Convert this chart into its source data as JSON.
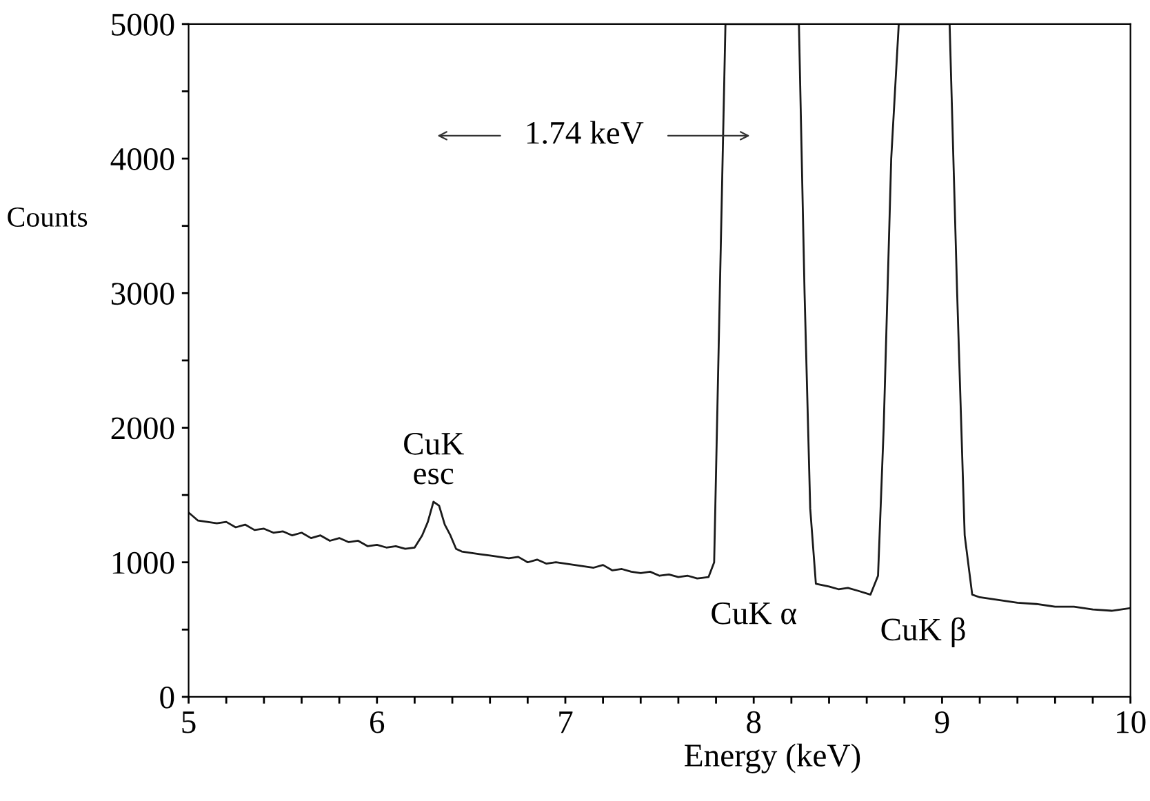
{
  "chart_data": {
    "type": "line",
    "xlabel": "Energy (keV)",
    "ylabel": "Counts",
    "x": [
      5.0,
      5.05,
      5.1,
      5.15,
      5.2,
      5.25,
      5.3,
      5.35,
      5.4,
      5.45,
      5.5,
      5.55,
      5.6,
      5.65,
      5.7,
      5.75,
      5.8,
      5.85,
      5.9,
      5.95,
      6.0,
      6.05,
      6.1,
      6.15,
      6.2,
      6.24,
      6.27,
      6.3,
      6.33,
      6.36,
      6.39,
      6.42,
      6.45,
      6.5,
      6.55,
      6.6,
      6.65,
      6.7,
      6.75,
      6.8,
      6.85,
      6.9,
      6.95,
      7.0,
      7.05,
      7.1,
      7.15,
      7.2,
      7.25,
      7.3,
      7.35,
      7.4,
      7.45,
      7.5,
      7.55,
      7.6,
      7.65,
      7.7,
      7.76,
      7.79,
      7.82,
      7.85,
      8.0,
      8.24,
      8.27,
      8.3,
      8.33,
      8.4,
      8.45,
      8.5,
      8.55,
      8.62,
      8.66,
      8.69,
      8.73,
      8.77,
      8.9,
      9.04,
      9.08,
      9.12,
      9.16,
      9.2,
      9.3,
      9.4,
      9.5,
      9.6,
      9.7,
      9.8,
      9.9,
      10.0
    ],
    "series": [
      {
        "color": "#1a1a1a",
        "values": [
          1370,
          1310,
          1300,
          1290,
          1300,
          1260,
          1280,
          1240,
          1250,
          1220,
          1230,
          1200,
          1220,
          1180,
          1200,
          1160,
          1180,
          1150,
          1160,
          1120,
          1130,
          1110,
          1120,
          1100,
          1110,
          1200,
          1300,
          1450,
          1420,
          1280,
          1200,
          1100,
          1080,
          1070,
          1060,
          1050,
          1040,
          1030,
          1040,
          1000,
          1020,
          990,
          1000,
          990,
          980,
          970,
          960,
          980,
          940,
          950,
          930,
          920,
          930,
          900,
          910,
          890,
          900,
          880,
          890,
          1000,
          3000,
          5000,
          5000,
          5000,
          3000,
          1400,
          840,
          820,
          800,
          810,
          790,
          760,
          900,
          2000,
          4000,
          5000,
          5000,
          5000,
          3000,
          1200,
          760,
          740,
          720,
          700,
          690,
          670,
          670,
          650,
          640,
          660
        ]
      }
    ],
    "xlim": [
      5,
      10
    ],
    "ylim": [
      0,
      5000
    ],
    "xticks": [
      5,
      {
        "value": 5.2,
        "label": null
      },
      {
        "value": 5.4,
        "label": null
      },
      {
        "value": 5.6,
        "label": null
      },
      {
        "value": 5.8,
        "label": null
      },
      6,
      {
        "value": 6.2,
        "label": null
      },
      {
        "value": 6.4,
        "label": null
      },
      {
        "value": 6.6,
        "label": null
      },
      {
        "value": 6.8,
        "label": null
      },
      7,
      {
        "value": 7.2,
        "label": null
      },
      {
        "value": 7.4,
        "label": null
      },
      {
        "value": 7.6,
        "label": null
      },
      {
        "value": 7.8,
        "label": null
      },
      8,
      {
        "value": 8.2,
        "label": null
      },
      {
        "value": 8.4,
        "label": null
      },
      {
        "value": 8.6,
        "label": null
      },
      {
        "value": 8.8,
        "label": null
      },
      9,
      {
        "value": 9.2,
        "label": null
      },
      {
        "value": 9.4,
        "label": null
      },
      {
        "value": 9.6,
        "label": null
      },
      {
        "value": 9.8,
        "label": null
      },
      10
    ],
    "yticks": [
      0,
      {
        "value": 500,
        "label": null
      },
      1000,
      {
        "value": 1500,
        "label": null
      },
      2000,
      {
        "value": 2500,
        "label": null
      },
      3000,
      {
        "value": 3500,
        "label": null
      },
      4000,
      {
        "value": 4500,
        "label": null
      },
      5000
    ],
    "annotations": [
      "CuK\nesc",
      "CuK α",
      "CuK β",
      "1.74 keV"
    ],
    "grid": false,
    "legend": false,
    "marker": "none",
    "line_style": "solid"
  }
}
